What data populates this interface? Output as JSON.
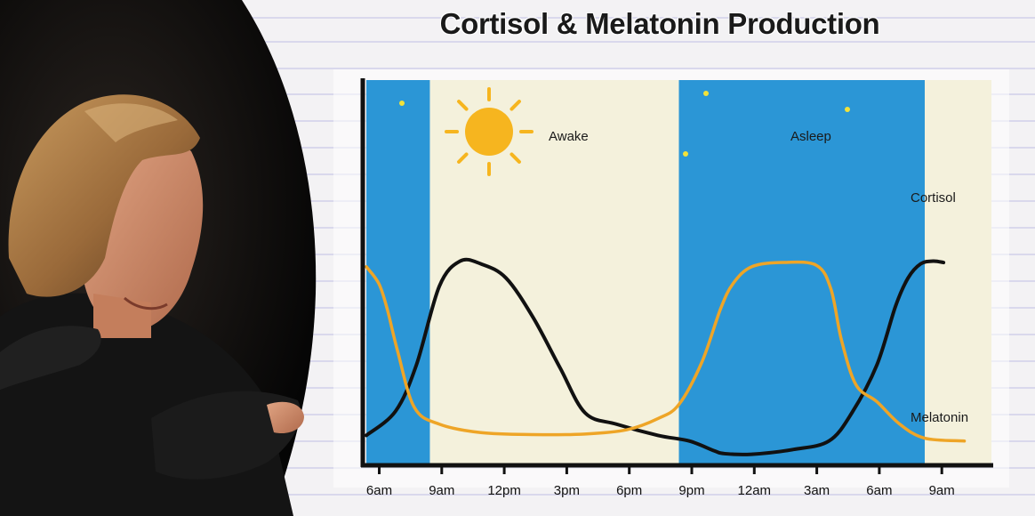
{
  "colors": {
    "night": "#2b96d6",
    "day": "#f4f1dc",
    "cortisol": "#111111",
    "melatonin": "#eea527",
    "sun": "#f6b51f",
    "moon": "#f2e23a"
  },
  "chart_data": {
    "type": "line",
    "title": "Cortisol & Melatonin Production",
    "xlabel": "",
    "ylabel": "",
    "x_ticks": [
      "6am",
      "9am",
      "12pm",
      "3pm",
      "6pm",
      "9pm",
      "12am",
      "3am",
      "6am",
      "9am"
    ],
    "x_range": [
      4.0,
      34.0
    ],
    "y_range": [
      0,
      100
    ],
    "grid": false,
    "legend": "inline labels at line ends",
    "bands": [
      {
        "start": 4.0,
        "end": 7.05,
        "kind": "night"
      },
      {
        "start": 7.05,
        "end": 19.0,
        "kind": "day",
        "label": "Awake",
        "icon": "sun-icon"
      },
      {
        "start": 19.0,
        "end": 30.8,
        "kind": "night",
        "label": "Asleep",
        "icon": "moon-icon"
      },
      {
        "start": 30.8,
        "end": 34.0,
        "kind": "day"
      }
    ],
    "series": [
      {
        "name": "Cortisol",
        "x": [
          4.0,
          5.4,
          6.4,
          7.5,
          8.5,
          9.5,
          10.7,
          12.0,
          13.3,
          14.5,
          16.0,
          18.0,
          19.5,
          20.7,
          21.2,
          22.5,
          24.5,
          26.2,
          27.3,
          28.5,
          29.4,
          30.0,
          30.6,
          31.2,
          31.7
        ],
        "y": [
          10.0,
          18.6,
          35.0,
          63.0,
          72.0,
          71.0,
          66.0,
          52.0,
          34.0,
          18.0,
          14.0,
          10.0,
          8.0,
          4.5,
          3.5,
          3.3,
          5.0,
          8.0,
          18.0,
          35.0,
          56.0,
          66.0,
          71.0,
          72.0,
          71.5
        ]
      },
      {
        "name": "Melatonin",
        "x": [
          4.0,
          4.6,
          5.0,
          5.5,
          6.3,
          7.5,
          9.5,
          12.0,
          14.5,
          16.5,
          18.0,
          19.0,
          20.1,
          21.0,
          21.6,
          22.5,
          24.0,
          25.6,
          26.3,
          26.8,
          27.5,
          28.5,
          29.6,
          30.8,
          32.7
        ],
        "y": [
          70.0,
          64.0,
          55.0,
          40.0,
          20.0,
          14.0,
          11.0,
          10.3,
          10.5,
          12.0,
          16.0,
          21.0,
          36.0,
          55.0,
          64.0,
          70.0,
          71.5,
          70.5,
          62.0,
          44.0,
          28.0,
          22.0,
          14.0,
          9.0,
          8.0
        ]
      }
    ],
    "annotations": [
      "Awake",
      "Asleep"
    ]
  }
}
